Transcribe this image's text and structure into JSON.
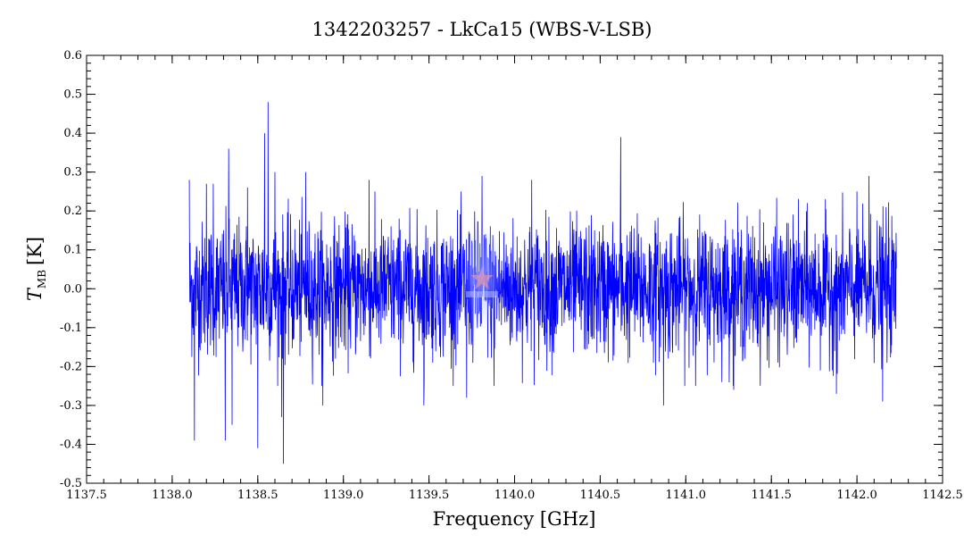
{
  "chart_data": {
    "type": "line",
    "title": "1342203257 - LkCa15 (WBS-V-LSB)",
    "xlabel": "Frequency [GHz]",
    "ylabel_main": "T",
    "ylabel_sub": "MB",
    "ylabel_unit": "[K]",
    "xlim": [
      1137.5,
      1142.5
    ],
    "ylim": [
      -0.5,
      0.6
    ],
    "xticks": [
      "1137.5",
      "1138.0",
      "1138.5",
      "1139.0",
      "1139.5",
      "1140.0",
      "1140.5",
      "1141.0",
      "1141.5",
      "1142.0",
      "1142.5"
    ],
    "yticks": [
      "-0.5",
      "-0.4",
      "-0.3",
      "-0.2",
      "-0.1",
      "0.0",
      "0.1",
      "0.2",
      "0.3",
      "0.4",
      "0.5",
      "0.6"
    ],
    "grid": false,
    "legend": "none",
    "series": [
      {
        "color": "#0000ff",
        "x_range": [
          1138.1,
          1142.23
        ],
        "noise_rms": 0.085,
        "baseline": 0.0,
        "x": [
          1138.1,
          1138.13,
          1138.2,
          1138.24,
          1138.31,
          1138.33,
          1138.35,
          1138.44,
          1138.5,
          1138.54,
          1138.56,
          1138.6,
          1138.64,
          1138.65,
          1138.78,
          1138.88,
          1139.15,
          1139.47,
          1139.72,
          1139.81,
          1139.88,
          1140.1,
          1140.62,
          1140.87,
          1141.28,
          1141.88,
          1142.07,
          1142.15,
          1142.17
        ],
        "y": [
          0.28,
          -0.39,
          0.27,
          0.27,
          -0.39,
          0.36,
          -0.35,
          0.26,
          -0.41,
          0.4,
          0.48,
          0.3,
          -0.33,
          -0.45,
          0.3,
          -0.3,
          0.28,
          -0.3,
          -0.28,
          0.29,
          -0.25,
          0.28,
          0.39,
          -0.3,
          -0.26,
          -0.27,
          0.29,
          -0.29,
          0.21
        ]
      }
    ]
  }
}
